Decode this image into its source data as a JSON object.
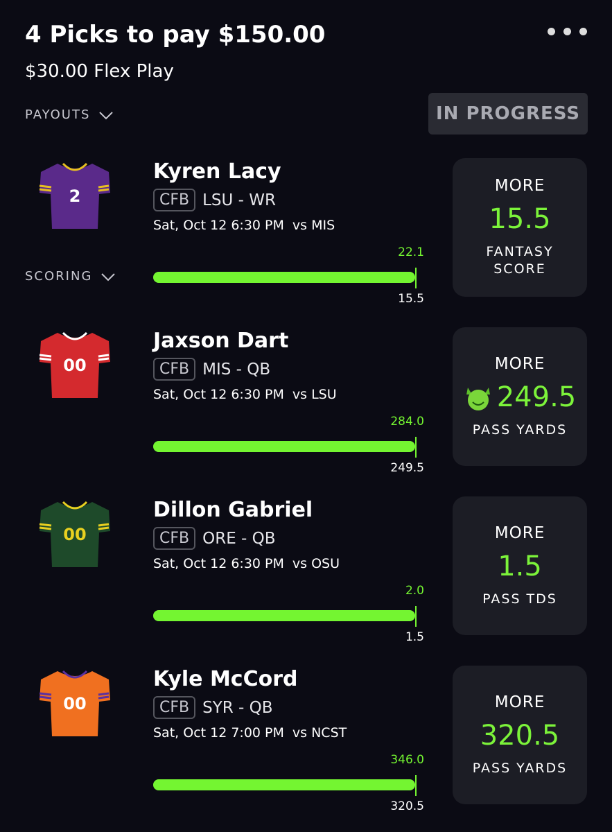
{
  "header": {
    "title": "4 Picks to pay $150.00",
    "subtitle": "$30.00 Flex Play",
    "payouts": "PAYOUTS",
    "status": "IN PROGRESS",
    "scoring": "SCORING"
  },
  "picks": [
    {
      "name": "Kyren Lacy",
      "league": "CFB",
      "team": "LSU - WR",
      "game": "Sat, Oct 12 6:30 PM",
      "opponent": "vs MIS",
      "jersey_number": "2",
      "jersey_color": "#5a2a8a",
      "trim_color": "#e8c020",
      "number_color": "#ffffff",
      "current": "22.1",
      "line": "15.5",
      "direction": "MORE",
      "stat": "FANTASY SCORE"
    },
    {
      "name": "Jaxson Dart",
      "league": "CFB",
      "team": "MIS - QB",
      "game": "Sat, Oct 12 6:30 PM",
      "opponent": "vs LSU",
      "jersey_number": "00",
      "jersey_color": "#d42a2e",
      "trim_color": "#ffffff",
      "number_color": "#ffffff",
      "current": "284.0",
      "line": "249.5",
      "direction": "MORE",
      "stat": "PASS YARDS"
    },
    {
      "name": "Dillon Gabriel",
      "league": "CFB",
      "team": "ORE - QB",
      "game": "Sat, Oct 12 6:30 PM",
      "opponent": "vs OSU",
      "jersey_number": "00",
      "jersey_color": "#1e4a2a",
      "trim_color": "#e8d020",
      "number_color": "#e8d020",
      "current": "2.0",
      "line": "1.5",
      "direction": "MORE",
      "stat": "PASS TDS"
    },
    {
      "name": "Kyle McCord",
      "league": "CFB",
      "team": "SYR - QB",
      "game": "Sat, Oct 12 7:00 PM",
      "opponent": "vs NCST",
      "jersey_number": "00",
      "jersey_color": "#f07020",
      "trim_color": "#5a30a0",
      "number_color": "#ffffff",
      "current": "346.0",
      "line": "320.5",
      "direction": "MORE",
      "stat": "PASS YARDS"
    }
  ]
}
